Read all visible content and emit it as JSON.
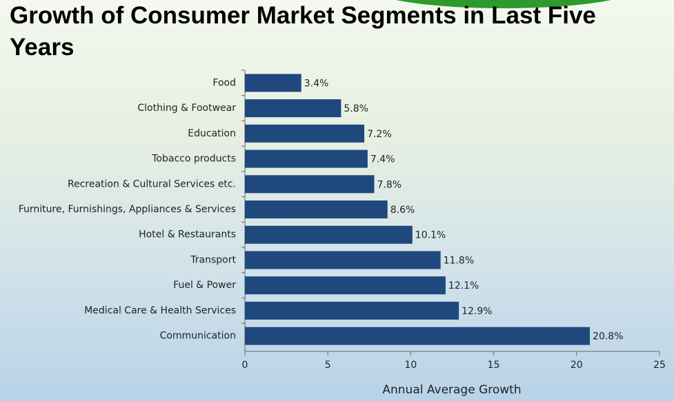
{
  "chart_data": {
    "type": "bar",
    "orientation": "horizontal",
    "title": "Growth of Consumer Market Segments in Last Five Years",
    "x_label": "Annual Average Growth",
    "categories": [
      "Food",
      "Clothing & Footwear",
      "Education",
      "Tobacco products",
      "Recreation & Cultural Services etc.",
      "Furniture, Furnishings, Appliances & Services",
      "Hotel & Restaurants",
      "Transport",
      "Fuel & Power",
      "Medical Care & Health Services",
      "Communication"
    ],
    "values": [
      3.4,
      5.8,
      7.2,
      7.4,
      7.8,
      8.6,
      10.1,
      11.8,
      12.1,
      12.9,
      20.8
    ],
    "value_labels": [
      "3.4%",
      "5.8%",
      "7.2%",
      "7.4%",
      "7.8%",
      "8.6%",
      "10.1%",
      "11.8%",
      "12.1%",
      "12.9%",
      "20.8%"
    ],
    "color": "#1f497d",
    "xlim": [
      0,
      25
    ],
    "xticks": [
      0,
      5,
      10,
      15,
      20,
      25
    ],
    "grid": false
  }
}
